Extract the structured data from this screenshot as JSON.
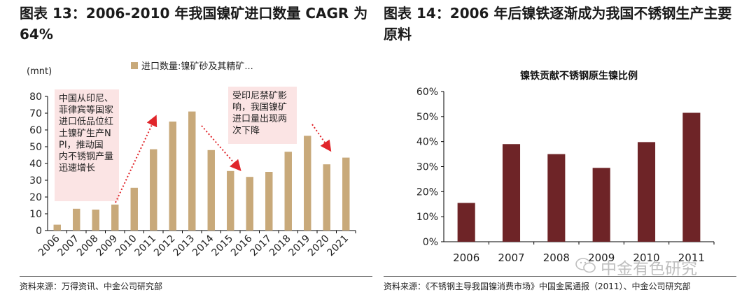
{
  "left": {
    "heading": "图表 13：2006-2010 年我国镍矿进口数量 CAGR 为 64%",
    "source": "资料来源：万得资讯、中金公司研究部",
    "annotations": [
      "中国从印尼、菲律宾等国家进口低品位红土镍矿生产NPI，推动国内不锈钢产量迅速增长",
      "受印尼禁矿影响，我国镍矿进口量出现两次下降"
    ]
  },
  "right": {
    "heading": "图表 14：2006 年后镍铁逐渐成为我国不锈钢生产主要原料",
    "source": "资料来源：《不锈钢主导我国镍消费市场》中国金属通报（2011）、中金公司研究部"
  },
  "watermark": "中金有色研究",
  "colors": {
    "bar_left": "#c8a97a",
    "bar_right": "#6e2427",
    "annotation_bg": "#fbe4e4",
    "arrow": "#e0252a"
  },
  "chart_data": [
    {
      "type": "bar",
      "unit_label": "(mnt)",
      "legend": "进口数量:镍矿砂及其精矿...",
      "categories": [
        "2006",
        "2007",
        "2008",
        "2009",
        "2010",
        "2011",
        "2012",
        "2013",
        "2014",
        "2015",
        "2016",
        "2017",
        "2018",
        "2019",
        "2020",
        "2021"
      ],
      "series": [
        {
          "name": "进口数量:镍矿砂及其精矿...",
          "values": [
            3.5,
            13,
            12.5,
            15.5,
            25.5,
            48.5,
            65,
            71,
            48,
            35.5,
            32,
            35,
            47,
            56.5,
            39.5,
            43.5
          ]
        }
      ],
      "ylim": [
        0,
        80
      ],
      "yticks": [
        0,
        10,
        20,
        30,
        40,
        50,
        60,
        70,
        80
      ]
    },
    {
      "type": "bar",
      "title": "镍铁贡献不锈钢原生镍比例",
      "categories": [
        "2006",
        "2007",
        "2008",
        "2009",
        "2010",
        "2011"
      ],
      "values": [
        15.5,
        39,
        35,
        29.5,
        39.8,
        51.5
      ],
      "ylim": [
        0,
        60
      ],
      "yticks": [
        "0%",
        "10%",
        "20%",
        "30%",
        "40%",
        "50%",
        "60%"
      ]
    }
  ]
}
